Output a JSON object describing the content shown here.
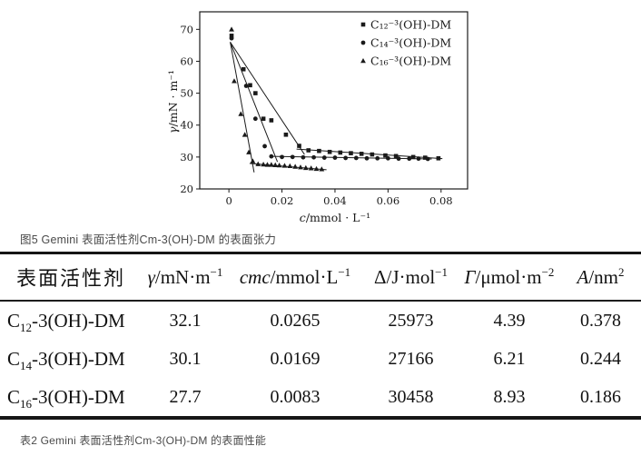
{
  "figure": {
    "caption": "图5 Gemini 表面活性剂Cm-3(OH)-DM 的表面张力"
  },
  "chart_data": {
    "type": "scatter",
    "title": "",
    "xlabel": "c/mmol · L⁻¹",
    "ylabel": "γ/mN · m⁻¹",
    "xlim": [
      -0.011,
      0.09
    ],
    "ylim": [
      20,
      75.5
    ],
    "x_ticks": [
      0,
      0.02,
      0.04,
      0.06,
      0.08
    ],
    "x_tick_labels": [
      "0",
      "0.02",
      "0.04",
      "0.06",
      "0.08"
    ],
    "y_ticks": [
      20,
      30,
      40,
      50,
      60,
      70
    ],
    "grid": false,
    "legend_position": "top-right",
    "color": "#1a1a1a",
    "series": [
      {
        "name": "C₁₂⁻³(OH)-DM",
        "marker": "square",
        "points": [
          [
            0.001,
            68.0
          ],
          [
            0.0055,
            57.5
          ],
          [
            0.008,
            52.5
          ],
          [
            0.01,
            50.0
          ],
          [
            0.013,
            42.0
          ],
          [
            0.016,
            41.5
          ],
          [
            0.0215,
            37.0
          ],
          [
            0.0265,
            33.5
          ],
          [
            0.03,
            32.1
          ],
          [
            0.034,
            31.9
          ],
          [
            0.038,
            31.6
          ],
          [
            0.042,
            31.4
          ],
          [
            0.046,
            31.2
          ],
          [
            0.05,
            31.0
          ],
          [
            0.054,
            30.8
          ],
          [
            0.059,
            30.5
          ],
          [
            0.063,
            30.3
          ],
          [
            0.0695,
            30.0
          ],
          [
            0.074,
            29.8
          ],
          [
            0.079,
            29.6
          ]
        ],
        "fit_lines": [
          [
            0.0005,
            66.0,
            0.0285,
            30.8
          ],
          [
            0.0255,
            32.5,
            0.0805,
            29.5
          ]
        ]
      },
      {
        "name": "C₁₄⁻³(OH)-DM",
        "marker": "circle",
        "points": [
          [
            0.001,
            67.2
          ],
          [
            0.0065,
            52.3
          ],
          [
            0.01,
            42.0
          ],
          [
            0.0135,
            33.4
          ],
          [
            0.016,
            30.2
          ],
          [
            0.02,
            30.0
          ],
          [
            0.024,
            30.0
          ],
          [
            0.028,
            29.9
          ],
          [
            0.032,
            29.9
          ],
          [
            0.036,
            29.8
          ],
          [
            0.04,
            29.8
          ],
          [
            0.044,
            29.7
          ],
          [
            0.048,
            29.7
          ],
          [
            0.052,
            29.6
          ],
          [
            0.056,
            29.6
          ],
          [
            0.06,
            29.6
          ],
          [
            0.064,
            29.5
          ],
          [
            0.068,
            29.5
          ],
          [
            0.0715,
            29.5
          ],
          [
            0.075,
            29.4
          ]
        ],
        "fit_lines": [
          [
            0.0005,
            66.0,
            0.0183,
            28.5
          ],
          [
            0.016,
            30.2,
            0.0765,
            29.4
          ]
        ]
      },
      {
        "name": "C₁₆⁻³(OH)-DM",
        "marker": "triangle",
        "points": [
          [
            0.001,
            70.0
          ],
          [
            0.002,
            53.8
          ],
          [
            0.0045,
            43.5
          ],
          [
            0.006,
            37.0
          ],
          [
            0.0075,
            31.5
          ],
          [
            0.009,
            28.7
          ],
          [
            0.011,
            27.8
          ],
          [
            0.013,
            27.7
          ],
          [
            0.0145,
            27.6
          ],
          [
            0.016,
            27.6
          ],
          [
            0.0175,
            27.5
          ],
          [
            0.019,
            27.4
          ],
          [
            0.021,
            27.3
          ],
          [
            0.023,
            27.2
          ],
          [
            0.025,
            27.0
          ],
          [
            0.027,
            26.8
          ],
          [
            0.029,
            26.6
          ],
          [
            0.031,
            26.5
          ],
          [
            0.033,
            26.3
          ],
          [
            0.035,
            26.2
          ]
        ],
        "fit_lines": [
          [
            0.0005,
            66.0,
            0.0095,
            25.2
          ],
          [
            0.0078,
            28.0,
            0.0368,
            26.0
          ]
        ]
      }
    ]
  },
  "table": {
    "caption": "表2 Gemini 表面活性剂Cm-3(OH)-DM 的表面性能",
    "columns": [
      {
        "segments": [
          {
            "t": "表面活性剂"
          }
        ]
      },
      {
        "segments": [
          {
            "t": "γ",
            "i": 1
          },
          {
            "t": "/mN·m"
          },
          {
            "t": "−1",
            "sup": 1
          }
        ]
      },
      {
        "segments": [
          {
            "t": "cmc",
            "i": 1
          },
          {
            "t": "/mmol·L"
          },
          {
            "t": "−1",
            "sup": 1
          }
        ]
      },
      {
        "segments": [
          {
            "t": "Δ"
          },
          {
            "t": "/J·mol"
          },
          {
            "t": "−1",
            "sup": 1
          }
        ]
      },
      {
        "segments": [
          {
            "t": "Γ",
            "i": 1
          },
          {
            "t": "/μmol·m"
          },
          {
            "t": "−2",
            "sup": 1
          }
        ]
      },
      {
        "segments": [
          {
            "t": "A",
            "i": 1
          },
          {
            "t": "/nm"
          },
          {
            "t": "2",
            "sup": 1
          }
        ]
      }
    ],
    "rows": [
      {
        "name": [
          {
            "t": "C"
          },
          {
            "t": "12",
            "sub": 1
          },
          {
            "t": "-3(OH)-DM"
          }
        ],
        "values": [
          "32.1",
          "0.0265",
          "25973",
          "4.39",
          "0.378"
        ]
      },
      {
        "name": [
          {
            "t": "C"
          },
          {
            "t": "14",
            "sub": 1
          },
          {
            "t": "-3(OH)-DM"
          }
        ],
        "values": [
          "30.1",
          "0.0169",
          "27166",
          "6.21",
          "0.244"
        ]
      },
      {
        "name": [
          {
            "t": "C"
          },
          {
            "t": "16",
            "sub": 1
          },
          {
            "t": "-3(OH)-DM"
          }
        ],
        "values": [
          "27.7",
          "0.0083",
          "30458",
          "8.93",
          "0.186"
        ]
      }
    ]
  }
}
